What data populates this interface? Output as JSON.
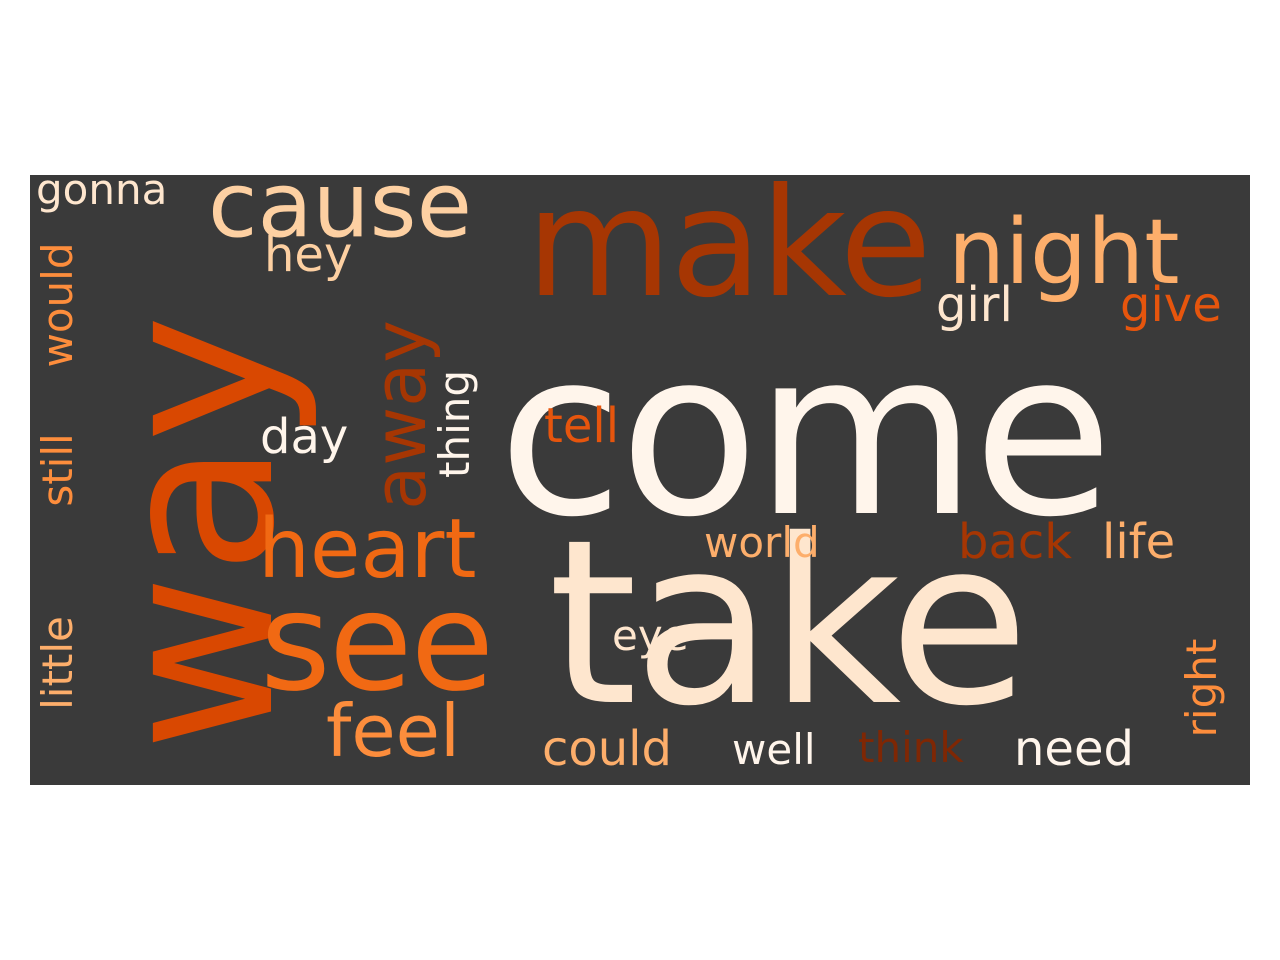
{
  "background": "#3a3a3a",
  "colormap": [
    "#7f2704",
    "#a63603",
    "#d94801",
    "#f16913",
    "#fd8d3c",
    "#fdae6b",
    "#fdd0a2",
    "#fee6ce",
    "#fff5eb"
  ],
  "words": [
    {
      "text": "come",
      "color": "#fff5eb",
      "orientation": "horizontal"
    },
    {
      "text": "take",
      "color": "#fee6ce",
      "orientation": "horizontal"
    },
    {
      "text": "way",
      "color": "#d94801",
      "orientation": "vertical"
    },
    {
      "text": "make",
      "color": "#a63603",
      "orientation": "horizontal"
    },
    {
      "text": "see",
      "color": "#f16913",
      "orientation": "horizontal"
    },
    {
      "text": "cause",
      "color": "#fdd0a2",
      "orientation": "horizontal"
    },
    {
      "text": "night",
      "color": "#fdae6b",
      "orientation": "horizontal"
    },
    {
      "text": "heart",
      "color": "#f16913",
      "orientation": "horizontal"
    },
    {
      "text": "away",
      "color": "#a63603",
      "orientation": "vertical"
    },
    {
      "text": "feel",
      "color": "#fd8d3c",
      "orientation": "horizontal"
    },
    {
      "text": "girl",
      "color": "#fee6ce",
      "orientation": "horizontal"
    },
    {
      "text": "give",
      "color": "#e6550d",
      "orientation": "horizontal"
    },
    {
      "text": "hey",
      "color": "#fdd0a2",
      "orientation": "horizontal"
    },
    {
      "text": "gonna",
      "color": "#fee6ce",
      "orientation": "horizontal"
    },
    {
      "text": "thing",
      "color": "#fff5eb",
      "orientation": "vertical"
    },
    {
      "text": "tell",
      "color": "#e6550d",
      "orientation": "horizontal"
    },
    {
      "text": "day",
      "color": "#fff5eb",
      "orientation": "horizontal"
    },
    {
      "text": "still",
      "color": "#fd8d3c",
      "orientation": "vertical"
    },
    {
      "text": "would",
      "color": "#fd8d3c",
      "orientation": "vertical"
    },
    {
      "text": "world",
      "color": "#fdae6b",
      "orientation": "horizontal"
    },
    {
      "text": "back",
      "color": "#a63603",
      "orientation": "horizontal"
    },
    {
      "text": "life",
      "color": "#fdae6b",
      "orientation": "horizontal"
    },
    {
      "text": "little",
      "color": "#fdae6b",
      "orientation": "vertical"
    },
    {
      "text": "eye",
      "color": "#fee6ce",
      "orientation": "horizontal"
    },
    {
      "text": "right",
      "color": "#fd8d3c",
      "orientation": "vertical"
    },
    {
      "text": "could",
      "color": "#fdae6b",
      "orientation": "horizontal"
    },
    {
      "text": "well",
      "color": "#fff5eb",
      "orientation": "horizontal"
    },
    {
      "text": "think",
      "color": "#7f2704",
      "orientation": "horizontal"
    },
    {
      "text": "need",
      "color": "#fff5eb",
      "orientation": "horizontal"
    }
  ]
}
